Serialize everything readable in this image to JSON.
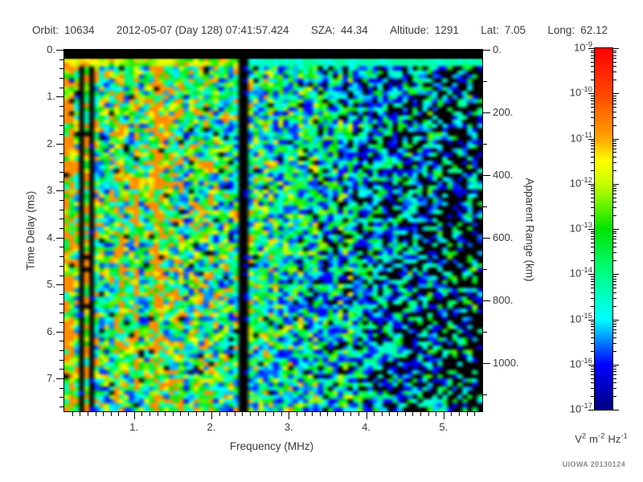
{
  "header": {
    "fields": [
      {
        "label": "Orbit:",
        "value": "10634"
      },
      {
        "label": "",
        "value": "2012-05-07 (Day 128) 07:41:57.424"
      },
      {
        "label": "SZA:",
        "value": "44.34"
      },
      {
        "label": "Altitude:",
        "value": "1291"
      },
      {
        "label": "Lat:",
        "value": "7.05"
      },
      {
        "label": "Long:",
        "value": "62.12"
      }
    ]
  },
  "chart_data": {
    "type": "heatmap",
    "description": "Radar sounder ionogram spectrogram: received spectral density versus sounding frequency (x) and echo time delay (y). Mottled blue/cyan noise field over a black background; intensity encoded with a rainbow log color scale.",
    "xlabel": "Frequency (MHz)",
    "ylabel_left": "Time Delay (ms)",
    "ylabel_right": "Apparent Range (km)",
    "x_range_mhz": [
      0.1,
      5.5
    ],
    "x_ticks": [
      {
        "value": 1,
        "label": "1."
      },
      {
        "value": 2,
        "label": "2."
      },
      {
        "value": 3,
        "label": "3."
      },
      {
        "value": 4,
        "label": "4."
      },
      {
        "value": 5,
        "label": "5."
      }
    ],
    "x_minor_step_mhz": 0.1,
    "y_left_range_ms": [
      0,
      7.7
    ],
    "y_left_ticks": [
      {
        "value": 0,
        "label": "0."
      },
      {
        "value": 1,
        "label": "1."
      },
      {
        "value": 2,
        "label": "2."
      },
      {
        "value": 3,
        "label": "3."
      },
      {
        "value": 4,
        "label": "4."
      },
      {
        "value": 5,
        "label": "5."
      },
      {
        "value": 6,
        "label": "6."
      },
      {
        "value": 7,
        "label": "7."
      }
    ],
    "y_left_minor_step_ms": 0.2,
    "y_right_range_km": [
      0,
      1155
    ],
    "y_right_ticks": [
      {
        "value": 0,
        "label": "0."
      },
      {
        "value": 200,
        "label": "200."
      },
      {
        "value": 400,
        "label": "400."
      },
      {
        "value": 600,
        "label": "600."
      },
      {
        "value": 800,
        "label": "800."
      },
      {
        "value": 1000,
        "label": "1000."
      }
    ],
    "y_right_minor_step_km": 100,
    "colorbar": {
      "scale": "log",
      "min": "1e-17",
      "max": "1e-9",
      "tick_label_base": "10",
      "tick_exponents": [
        -9,
        -10,
        -11,
        -12,
        -13,
        -14,
        -15,
        -16,
        -17
      ],
      "units_parts": [
        {
          "base": "V",
          "sup": "2"
        },
        {
          "base": "m",
          "sup": "-2"
        },
        {
          "base": "Hz",
          "sup": "-1"
        }
      ],
      "gradient_stops": [
        {
          "t": 0.0,
          "color": "#000082"
        },
        {
          "t": 0.125,
          "color": "#0000ff"
        },
        {
          "t": 0.25,
          "color": "#00ffff"
        },
        {
          "t": 0.375,
          "color": "#00ff87"
        },
        {
          "t": 0.5,
          "color": "#00e400"
        },
        {
          "t": 0.625,
          "color": "#c8ff00"
        },
        {
          "t": 0.6875,
          "color": "#ffff00"
        },
        {
          "t": 0.75,
          "color": "#ffa500"
        },
        {
          "t": 0.875,
          "color": "#ff4500"
        },
        {
          "t": 1.0,
          "color": "#ff0000"
        }
      ]
    },
    "features": [
      "saturated black bar across the top, 0 to ~0.15 ms delay",
      "bright cyan band at ~0.2-0.35 ms delay for frequencies below ~2.4 MHz",
      "strong vertical plasma-harmonic stripes below 0.5 MHz with black gaps near 0.3-0.45 MHz",
      "bright cyan vertical stripe near 1.25 MHz spanning all delays",
      "dark absorption column near 2.35 MHz spanning all delays",
      "background signal fades into black speckle above ~4 MHz, sparsest beyond 5 MHz"
    ],
    "noise_seed": 20130124,
    "credit": "UIOWA 20130124"
  }
}
